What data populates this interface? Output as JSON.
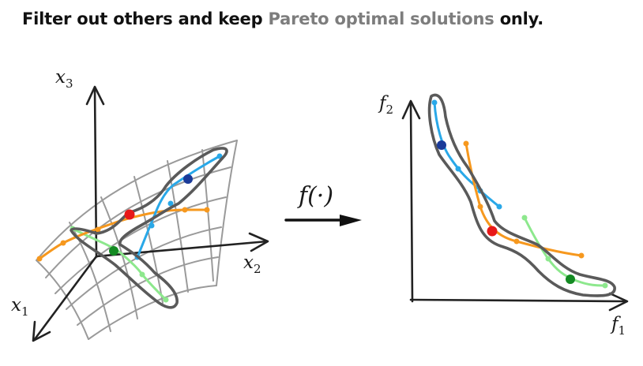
{
  "title": {
    "prefix": "Filter out others and keep ",
    "highlight": "Pareto optimal solutions",
    "suffix": " only.",
    "highlight_color": "#7d7d7d"
  },
  "left_axes": {
    "x1": "x",
    "x1_sub": "1",
    "x2": "x",
    "x2_sub": "2",
    "x3": "x",
    "x3_sub": "3"
  },
  "mapping": {
    "label": "f(·)"
  },
  "right_axes": {
    "f1": "f",
    "f1_sub": "1",
    "f2": "f",
    "f2_sub": "2"
  },
  "colors": {
    "blue_series": "#29a8e8",
    "orange_series": "#f6981e",
    "green_series": "#8de88d",
    "dark_blue_point": "#1a3a99",
    "red_point": "#e81818",
    "dark_green_point": "#138a22",
    "surface_grid": "#9a9a9a",
    "pareto_outline": "#5a5a5a"
  }
}
